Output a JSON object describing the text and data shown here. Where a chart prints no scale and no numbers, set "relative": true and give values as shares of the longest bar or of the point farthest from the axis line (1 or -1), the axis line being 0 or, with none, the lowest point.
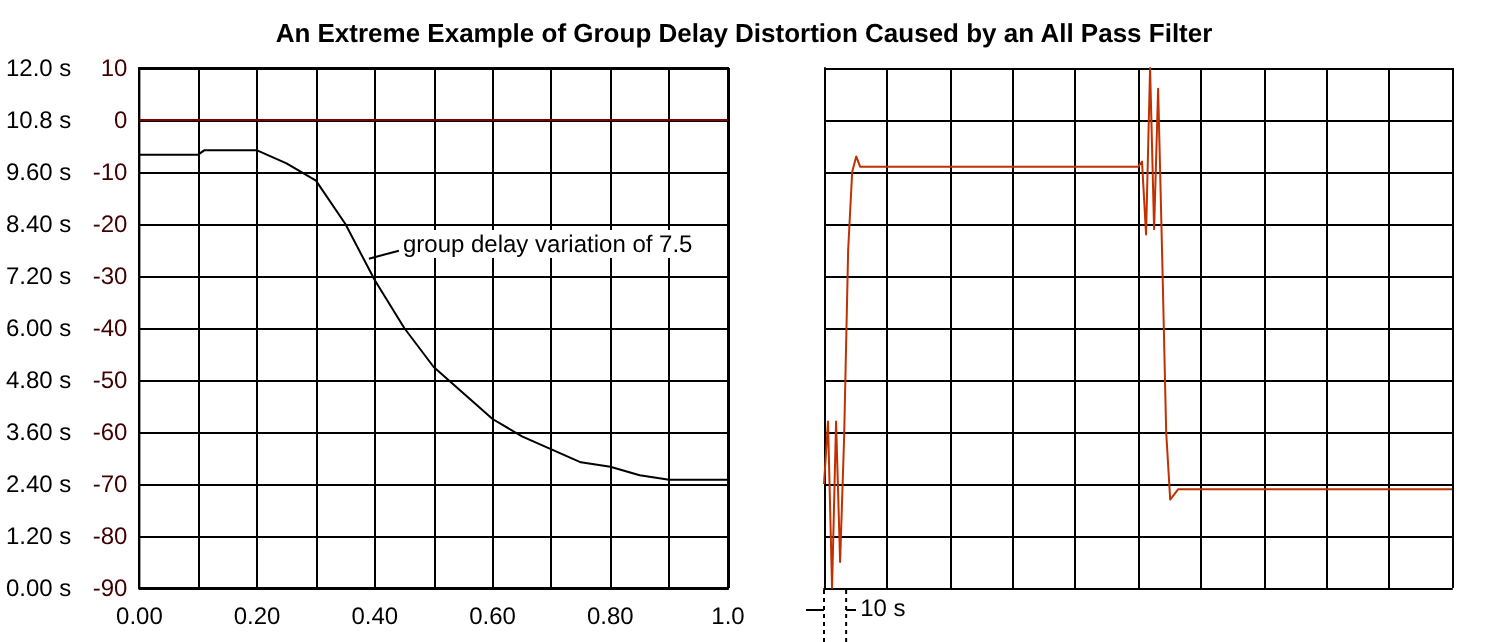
{
  "chart_data": [
    {
      "type": "line",
      "title": "An Extreme Example of Group Delay Distortion Caused by an All Pass Filter",
      "grid": true,
      "xlim": [
        0,
        1
      ],
      "xticks": [
        {
          "value": 0,
          "label": "0.00"
        },
        {
          "value": 0.1,
          "label": null
        },
        {
          "value": 0.2,
          "label": "0.20"
        },
        {
          "value": 0.3,
          "label": null
        },
        {
          "value": 0.4,
          "label": "0.40"
        },
        {
          "value": 0.5,
          "label": null
        },
        {
          "value": 0.6,
          "label": "0.60"
        },
        {
          "value": 0.7,
          "label": null
        },
        {
          "value": 0.8,
          "label": "0.80"
        },
        {
          "value": 0.9,
          "label": null
        },
        {
          "value": 1,
          "label": "1.0"
        }
      ],
      "ylim": [
        0,
        12
      ],
      "yticks": [
        {
          "value": 0,
          "label": "0.00 s"
        },
        {
          "value": 1.2,
          "label": "1.20 s"
        },
        {
          "value": 2.4,
          "label": "2.40 s"
        },
        {
          "value": 3.6,
          "label": "3.60 s"
        },
        {
          "value": 4.8,
          "label": "4.80 s"
        },
        {
          "value": 6,
          "label": "6.00 s"
        },
        {
          "value": 7.2,
          "label": "7.20 s"
        },
        {
          "value": 8.4,
          "label": "8.40 s"
        },
        {
          "value": 9.6,
          "label": "9.60 s"
        },
        {
          "value": 10.8,
          "label": "10.8 s"
        },
        {
          "value": 12,
          "label": "12.0 s"
        }
      ],
      "y2lim": [
        -90,
        10
      ],
      "y2ticks": [
        -90,
        -80,
        -70,
        -60,
        -50,
        -40,
        -30,
        -20,
        -10,
        0,
        10
      ],
      "series": [
        {
          "color": "#000000",
          "x": [
            0,
            0.1,
            0.11,
            0.2,
            0.25,
            0.3,
            0.35,
            0.4,
            0.45,
            0.5,
            0.55,
            0.6,
            0.65,
            0.7,
            0.75,
            0.8,
            0.85,
            0.9,
            0.95,
            1
          ],
          "values": [
            10.0,
            10.0,
            10.1,
            10.1,
            9.8,
            9.4,
            8.4,
            7.1,
            6.0,
            5.1,
            4.5,
            3.9,
            3.5,
            3.2,
            2.9,
            2.8,
            2.6,
            2.5,
            2.5,
            2.5
          ]
        },
        {
          "color": "#800000",
          "axis": "y2",
          "x": [
            0,
            1
          ],
          "values": [
            0,
            0
          ]
        }
      ],
      "annotations": [
        {
          "text": "group delay variation of 7.5",
          "x": 0.39,
          "y": 7.6
        }
      ]
    },
    {
      "type": "line",
      "relative": true,
      "grid": true,
      "categories": [
        null,
        null,
        null,
        null,
        null,
        null,
        null,
        null,
        null,
        null,
        null,
        null,
        null,
        null,
        null,
        null,
        null,
        null,
        null,
        null,
        null,
        null,
        null,
        null,
        null,
        null,
        null,
        null,
        null,
        null,
        null,
        null,
        null,
        null,
        null,
        null,
        null,
        null,
        null,
        null,
        null,
        null,
        null,
        null,
        null,
        null,
        null,
        null,
        null,
        null,
        null,
        null,
        null,
        null,
        null,
        null,
        null,
        null,
        null,
        null,
        null,
        null,
        null,
        null,
        null,
        null,
        null,
        null,
        null,
        null,
        null,
        null,
        null,
        null,
        null,
        null,
        null,
        null,
        null,
        null,
        null,
        null,
        null,
        null,
        null,
        null,
        null,
        null,
        null,
        null,
        null,
        null,
        null,
        null,
        null,
        null,
        null,
        null,
        null,
        null,
        null,
        null,
        null,
        null,
        null,
        null,
        null,
        null,
        null,
        null,
        null,
        null,
        null,
        null,
        null,
        null,
        null,
        null,
        null,
        null,
        null,
        null,
        null,
        null,
        null,
        null,
        null,
        null,
        null,
        null,
        null,
        null,
        null,
        null,
        null,
        null,
        null,
        null,
        null,
        null,
        null,
        null,
        null,
        null,
        null,
        null,
        null,
        null,
        null,
        null,
        null,
        null,
        null,
        null,
        null,
        null,
        null
      ],
      "series": [
        {
          "color": "#c03000",
          "values": [
            0.2,
            0.32,
            0.0,
            0.32,
            0.05,
            0.29,
            0.65,
            0.8,
            0.83,
            0.81,
            0.81,
            0.81,
            0.81,
            0.81,
            0.81,
            0.81,
            0.81,
            0.81,
            0.81,
            0.81,
            0.81,
            0.81,
            0.81,
            0.81,
            0.81,
            0.81,
            0.81,
            0.81,
            0.81,
            0.81,
            0.81,
            0.81,
            0.81,
            0.81,
            0.81,
            0.81,
            0.81,
            0.81,
            0.81,
            0.81,
            0.81,
            0.81,
            0.81,
            0.81,
            0.81,
            0.81,
            0.81,
            0.81,
            0.81,
            0.81,
            0.81,
            0.81,
            0.81,
            0.81,
            0.81,
            0.81,
            0.81,
            0.81,
            0.81,
            0.81,
            0.81,
            0.81,
            0.81,
            0.81,
            0.81,
            0.81,
            0.81,
            0.81,
            0.81,
            0.81,
            0.81,
            0.81,
            0.81,
            0.81,
            0.81,
            0.81,
            0.81,
            0.81,
            0.81,
            0.82,
            0.68,
            1.0,
            0.69,
            0.96,
            0.64,
            0.3,
            0.17,
            0.18,
            0.19,
            0.19,
            0.19,
            0.19,
            0.19,
            0.19,
            0.19,
            0.19,
            0.19,
            0.19,
            0.19,
            0.19,
            0.19,
            0.19,
            0.19,
            0.19,
            0.19,
            0.19,
            0.19,
            0.19,
            0.19,
            0.19,
            0.19,
            0.19,
            0.19,
            0.19,
            0.19,
            0.19,
            0.19,
            0.19,
            0.19,
            0.19,
            0.19,
            0.19,
            0.19,
            0.19,
            0.19,
            0.19,
            0.19,
            0.19,
            0.19,
            0.19,
            0.19,
            0.19,
            0.19,
            0.19,
            0.19,
            0.19,
            0.19,
            0.19,
            0.19,
            0.19,
            0.19,
            0.19,
            0.19,
            0.19,
            0.19,
            0.19,
            0.19,
            0.19,
            0.19,
            0.19,
            0.19,
            0.19,
            0.19,
            0.19,
            0.19,
            0.19,
            0.19
          ]
        }
      ],
      "annotations": [
        "10 s"
      ]
    }
  ]
}
